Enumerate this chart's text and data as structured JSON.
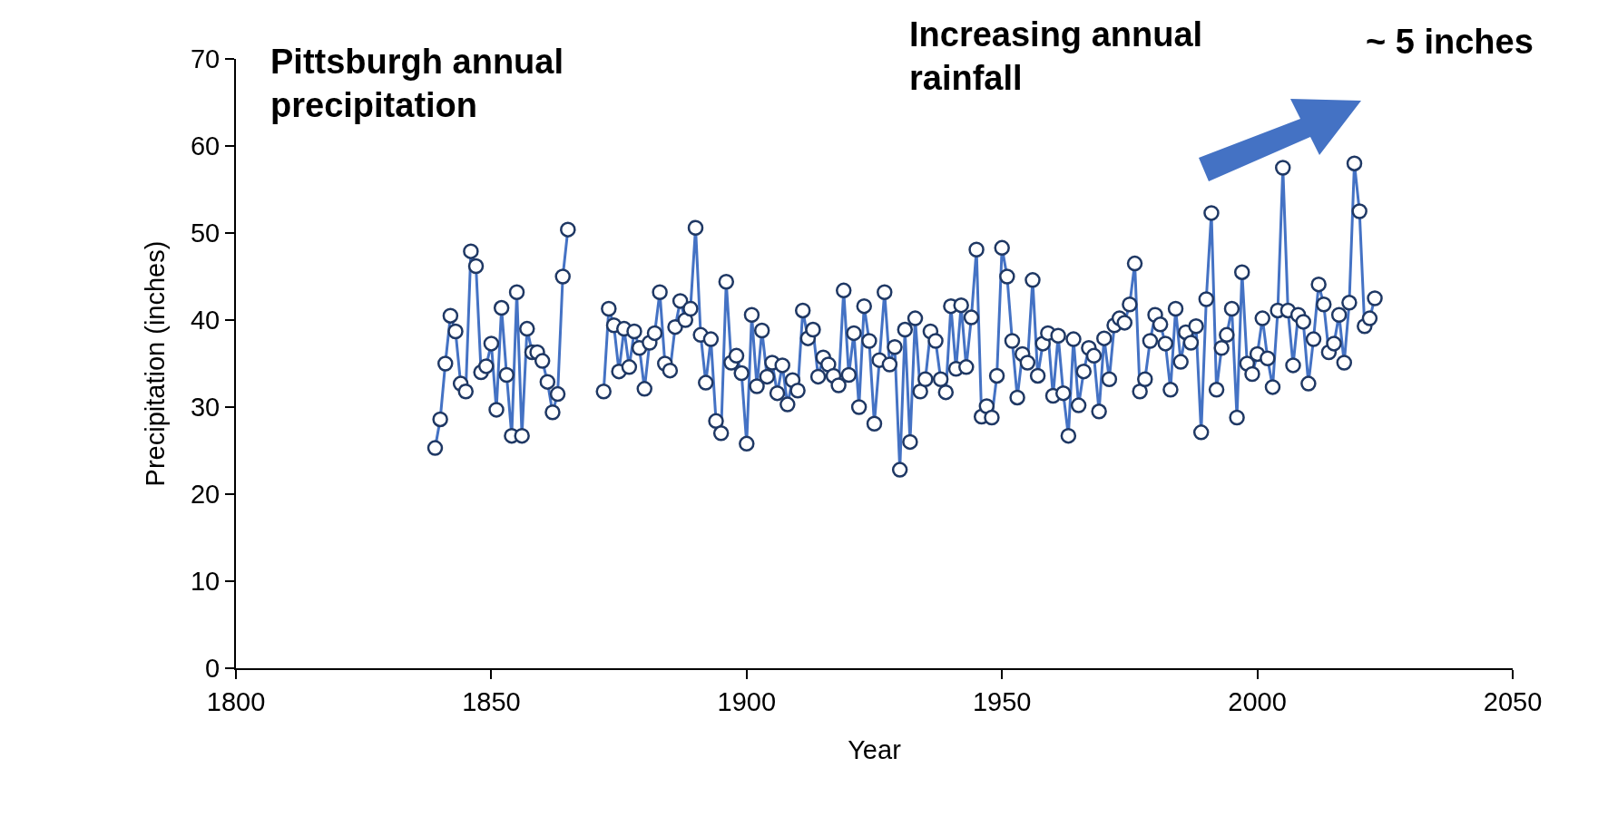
{
  "chart_data": {
    "type": "line",
    "xlabel": "Year",
    "ylabel": "Precipitation (inches)",
    "annotations": [
      "Pittsburgh annual precipitation",
      "Increasing annual rainfall",
      "~ 5 inches"
    ],
    "xlim": [
      1800,
      2050
    ],
    "xticks": [
      1800,
      1850,
      1900,
      1950,
      2000,
      2050
    ],
    "ylim": [
      0,
      70
    ],
    "yticks": [
      0,
      10,
      20,
      30,
      40,
      50,
      60,
      70
    ],
    "grid": false,
    "marker": "circle",
    "line_style": "solid",
    "x": [
      1839,
      1840,
      1841,
      1842,
      1843,
      1844,
      1845,
      1846,
      1847,
      1848,
      1849,
      1850,
      1851,
      1852,
      1853,
      1854,
      1855,
      1856,
      1857,
      1858,
      1859,
      1860,
      1861,
      1862,
      1863,
      1864,
      1865,
      1868,
      1872,
      1873,
      1874,
      1875,
      1876,
      1877,
      1878,
      1879,
      1880,
      1881,
      1882,
      1883,
      1884,
      1885,
      1886,
      1887,
      1888,
      1889,
      1890,
      1891,
      1892,
      1893,
      1894,
      1895,
      1896,
      1897,
      1898,
      1899,
      1900,
      1901,
      1902,
      1903,
      1904,
      1905,
      1906,
      1907,
      1908,
      1909,
      1910,
      1911,
      1912,
      1913,
      1914,
      1915,
      1916,
      1917,
      1918,
      1919,
      1920,
      1921,
      1922,
      1923,
      1924,
      1925,
      1926,
      1927,
      1928,
      1929,
      1930,
      1931,
      1932,
      1933,
      1934,
      1935,
      1936,
      1937,
      1938,
      1939,
      1940,
      1941,
      1942,
      1943,
      1944,
      1945,
      1946,
      1947,
      1948,
      1949,
      1950,
      1951,
      1952,
      1953,
      1954,
      1955,
      1956,
      1957,
      1958,
      1959,
      1960,
      1961,
      1962,
      1963,
      1964,
      1965,
      1966,
      1967,
      1968,
      1969,
      1970,
      1971,
      1972,
      1973,
      1974,
      1975,
      1976,
      1977,
      1978,
      1979,
      1980,
      1981,
      1982,
      1983,
      1984,
      1985,
      1986,
      1987,
      1988,
      1989,
      1990,
      1991,
      1992,
      1993,
      1994,
      1995,
      1996,
      1997,
      1998,
      1999,
      2000,
      2001,
      2002,
      2003,
      2004,
      2005,
      2006,
      2007,
      2008,
      2009,
      2010,
      2011,
      2012,
      2013,
      2014,
      2015,
      2016,
      2017,
      2018,
      2019,
      2020,
      2021,
      2022,
      2023
    ],
    "series": [
      {
        "color": "#4472c4",
        "values": [
          25.3,
          28.6,
          35.0,
          40.5,
          38.7,
          32.7,
          31.8,
          47.9,
          46.2,
          34.0,
          34.7,
          37.3,
          29.7,
          41.4,
          33.7,
          26.7,
          43.2,
          26.7,
          39.0,
          36.3,
          36.3,
          35.3,
          32.9,
          29.4,
          31.5,
          45.0,
          50.4,
          null,
          31.8,
          41.3,
          39.4,
          34.1,
          39.0,
          34.6,
          38.7,
          36.8,
          32.1,
          37.4,
          38.5,
          43.2,
          35.0,
          34.2,
          39.2,
          42.2,
          40.0,
          41.3,
          50.6,
          38.3,
          32.8,
          37.8,
          28.4,
          27.0,
          44.4,
          35.1,
          35.9,
          33.9,
          25.8,
          40.6,
          32.4,
          38.8,
          33.5,
          35.1,
          31.6,
          34.8,
          30.3,
          33.1,
          31.9,
          41.1,
          37.9,
          38.9,
          33.5,
          35.7,
          34.9,
          33.6,
          32.5,
          43.4,
          33.7,
          38.5,
          30.0,
          41.6,
          37.6,
          28.1,
          35.4,
          43.2,
          34.9,
          36.9,
          22.8,
          38.9,
          26.0,
          40.2,
          31.8,
          33.2,
          38.7,
          37.6,
          33.2,
          31.7,
          41.6,
          34.4,
          41.7,
          34.6,
          40.3,
          48.1,
          28.9,
          30.1,
          28.8,
          33.6,
          48.3,
          45.0,
          37.6,
          31.1,
          36.1,
          35.1,
          44.6,
          33.6,
          37.3,
          38.5,
          31.3,
          38.2,
          31.6,
          26.7,
          37.8,
          30.2,
          34.1,
          36.8,
          35.9,
          29.5,
          37.9,
          33.2,
          39.4,
          40.2,
          39.7,
          41.8,
          46.5,
          31.8,
          33.2,
          37.6,
          40.6,
          39.5,
          37.3,
          32.0,
          41.3,
          35.2,
          38.6,
          37.4,
          39.3,
          27.1,
          42.4,
          52.3,
          32.0,
          36.8,
          38.3,
          41.3,
          28.8,
          45.5,
          35.0,
          33.8,
          36.1,
          40.2,
          35.6,
          32.3,
          41.1,
          57.5,
          41.1,
          34.8,
          40.6,
          39.8,
          32.7,
          37.8,
          44.1,
          41.8,
          36.3,
          37.3,
          40.6,
          35.1,
          42.0,
          58.0,
          52.5,
          39.3,
          40.2,
          42.5
        ]
      }
    ]
  }
}
